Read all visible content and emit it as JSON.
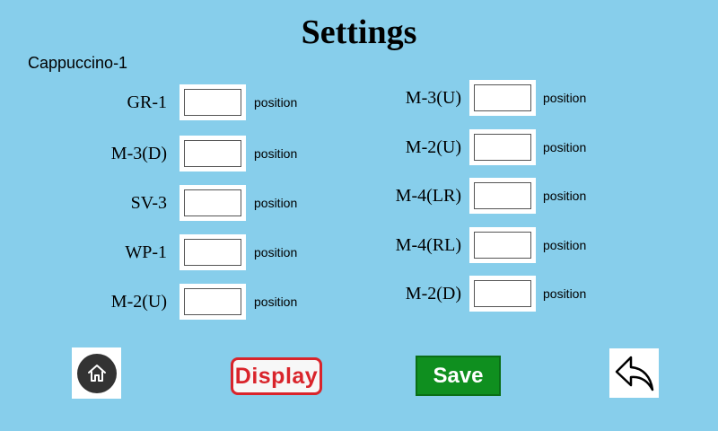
{
  "title": "Settings",
  "subtitle": "Cappuccino-1",
  "left_fields": [
    {
      "label": "GR-1",
      "value": "",
      "unit": "position"
    },
    {
      "label": "M-3(D)",
      "value": "",
      "unit": "position"
    },
    {
      "label": "SV-3",
      "value": "",
      "unit": "position"
    },
    {
      "label": "WP-1",
      "value": "",
      "unit": "position"
    },
    {
      "label": "M-2(U)",
      "value": "",
      "unit": "position"
    }
  ],
  "right_fields": [
    {
      "label": "M-3(U)",
      "value": "",
      "unit": "position"
    },
    {
      "label": "M-2(U)",
      "value": "",
      "unit": "position"
    },
    {
      "label": "M-4(LR)",
      "value": "",
      "unit": "position"
    },
    {
      "label": "M-4(RL)",
      "value": "",
      "unit": "position"
    },
    {
      "label": "M-2(D)",
      "value": "",
      "unit": "position"
    }
  ],
  "buttons": {
    "home_icon": "home-icon",
    "display_label": "Display",
    "save_label": "Save",
    "back_icon": "back-arrow-icon"
  },
  "colors": {
    "background": "#87ceeb",
    "display": "#d9242b",
    "save": "#0f8f1f"
  }
}
